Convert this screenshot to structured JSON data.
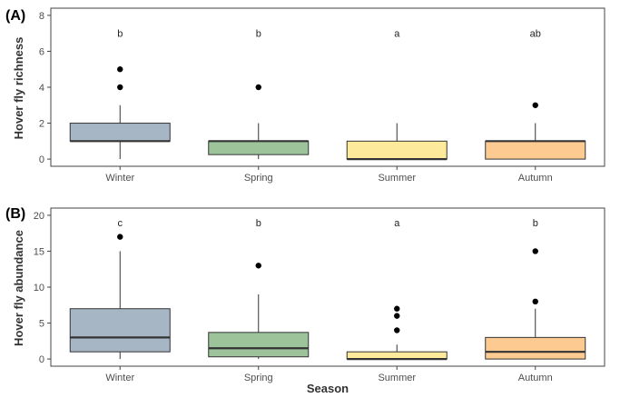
{
  "chart_data": [
    {
      "type": "box",
      "panel_label": "(A)",
      "ylabel": "Hover fly richness",
      "ylim": [
        -0.4,
        8.4
      ],
      "yticks": [
        0,
        2,
        4,
        6,
        8
      ],
      "categories": [
        "Winter",
        "Spring",
        "Summer",
        "Autumn"
      ],
      "colors": [
        "#a7b6c4",
        "#9cc39a",
        "#fdea9a",
        "#fdcb91"
      ],
      "boxes": [
        {
          "q1": 1,
          "median": 1,
          "q3": 2,
          "whisker_low": 0,
          "whisker_high": 3,
          "outliers": [
            4,
            5
          ]
        },
        {
          "q1": 0.25,
          "median": 1,
          "q3": 1,
          "whisker_low": 0,
          "whisker_high": 2,
          "outliers": [
            4
          ]
        },
        {
          "q1": 0,
          "median": 0,
          "q3": 1,
          "whisker_low": 0,
          "whisker_high": 2,
          "outliers": []
        },
        {
          "q1": 0,
          "median": 1,
          "q3": 1,
          "whisker_low": 0,
          "whisker_high": 2,
          "outliers": [
            3
          ]
        }
      ],
      "letters": [
        "b",
        "b",
        "a",
        "ab"
      ],
      "letter_y": 7
    },
    {
      "type": "box",
      "panel_label": "(B)",
      "ylabel": "Hover fly abundance",
      "ylim": [
        -1,
        21
      ],
      "yticks": [
        0,
        5,
        10,
        15,
        20
      ],
      "xlabel": "Season",
      "categories": [
        "Winter",
        "Spring",
        "Summer",
        "Autumn"
      ],
      "colors": [
        "#a7b6c4",
        "#9cc39a",
        "#fdea9a",
        "#fdcb91"
      ],
      "boxes": [
        {
          "q1": 1,
          "median": 3,
          "q3": 7,
          "whisker_low": 0,
          "whisker_high": 15,
          "outliers": [
            17
          ]
        },
        {
          "q1": 0.3,
          "median": 1.5,
          "q3": 3.7,
          "whisker_low": 0,
          "whisker_high": 9,
          "outliers": [
            13
          ]
        },
        {
          "q1": 0,
          "median": 0,
          "q3": 1,
          "whisker_low": 0,
          "whisker_high": 2,
          "outliers": [
            4,
            6,
            7
          ]
        },
        {
          "q1": 0,
          "median": 1,
          "q3": 3,
          "whisker_low": 0,
          "whisker_high": 7,
          "outliers": [
            8,
            15
          ]
        }
      ],
      "letters": [
        "c",
        "b",
        "a",
        "b"
      ],
      "letter_y": 19
    }
  ]
}
